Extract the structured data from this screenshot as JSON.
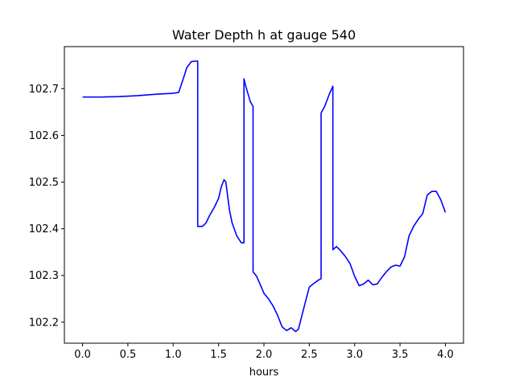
{
  "chart_data": {
    "type": "line",
    "title": "Water Depth h at gauge 540",
    "xlabel": "hours",
    "ylabel": "",
    "xlim": [
      -0.2,
      4.2
    ],
    "ylim": [
      102.155,
      102.79
    ],
    "xticks": [
      0.0,
      0.5,
      1.0,
      1.5,
      2.0,
      2.5,
      3.0,
      3.5,
      4.0
    ],
    "xtick_labels": [
      "0.0",
      "0.5",
      "1.0",
      "1.5",
      "2.0",
      "2.5",
      "3.0",
      "3.5",
      "4.0"
    ],
    "yticks": [
      102.2,
      102.3,
      102.4,
      102.5,
      102.6,
      102.7
    ],
    "ytick_labels": [
      "102.2",
      "102.3",
      "102.4",
      "102.5",
      "102.6",
      "102.7"
    ],
    "grid": false,
    "series": [
      {
        "color": "#0000ff",
        "x": [
          0.0,
          0.2,
          0.4,
          0.6,
          0.8,
          1.0,
          1.06,
          1.1,
          1.15,
          1.2,
          1.25,
          1.27,
          1.27,
          1.32,
          1.36,
          1.4,
          1.45,
          1.5,
          1.53,
          1.56,
          1.58,
          1.6,
          1.62,
          1.65,
          1.7,
          1.75,
          1.78,
          1.78,
          1.8,
          1.85,
          1.88,
          1.88,
          1.92,
          1.96,
          2.0,
          2.05,
          2.1,
          2.15,
          2.2,
          2.25,
          2.3,
          2.35,
          2.38,
          2.4,
          2.45,
          2.5,
          2.55,
          2.6,
          2.63,
          2.63,
          2.67,
          2.72,
          2.76,
          2.76,
          2.8,
          2.85,
          2.9,
          2.95,
          3.0,
          3.05,
          3.1,
          3.15,
          3.2,
          3.25,
          3.3,
          3.35,
          3.4,
          3.45,
          3.5,
          3.55,
          3.6,
          3.65,
          3.7,
          3.75,
          3.8,
          3.85,
          3.9,
          3.95,
          4.0
        ],
        "y": [
          102.682,
          102.682,
          102.683,
          102.685,
          102.688,
          102.69,
          102.692,
          102.715,
          102.745,
          102.758,
          102.759,
          102.759,
          102.405,
          102.405,
          102.412,
          102.428,
          102.445,
          102.465,
          102.49,
          102.505,
          102.5,
          102.47,
          102.44,
          102.412,
          102.385,
          102.37,
          102.37,
          102.721,
          102.705,
          102.672,
          102.662,
          102.308,
          102.298,
          102.28,
          102.262,
          102.25,
          102.235,
          102.215,
          102.19,
          102.182,
          102.188,
          102.18,
          102.185,
          102.2,
          102.238,
          102.275,
          102.283,
          102.29,
          102.293,
          102.648,
          102.662,
          102.688,
          102.705,
          102.355,
          102.362,
          102.352,
          102.34,
          102.325,
          102.298,
          102.278,
          102.282,
          102.29,
          102.28,
          102.282,
          102.296,
          102.308,
          102.318,
          102.322,
          102.32,
          102.34,
          102.385,
          102.405,
          102.42,
          102.432,
          102.472,
          102.48,
          102.48,
          102.462,
          102.435
        ]
      }
    ]
  }
}
